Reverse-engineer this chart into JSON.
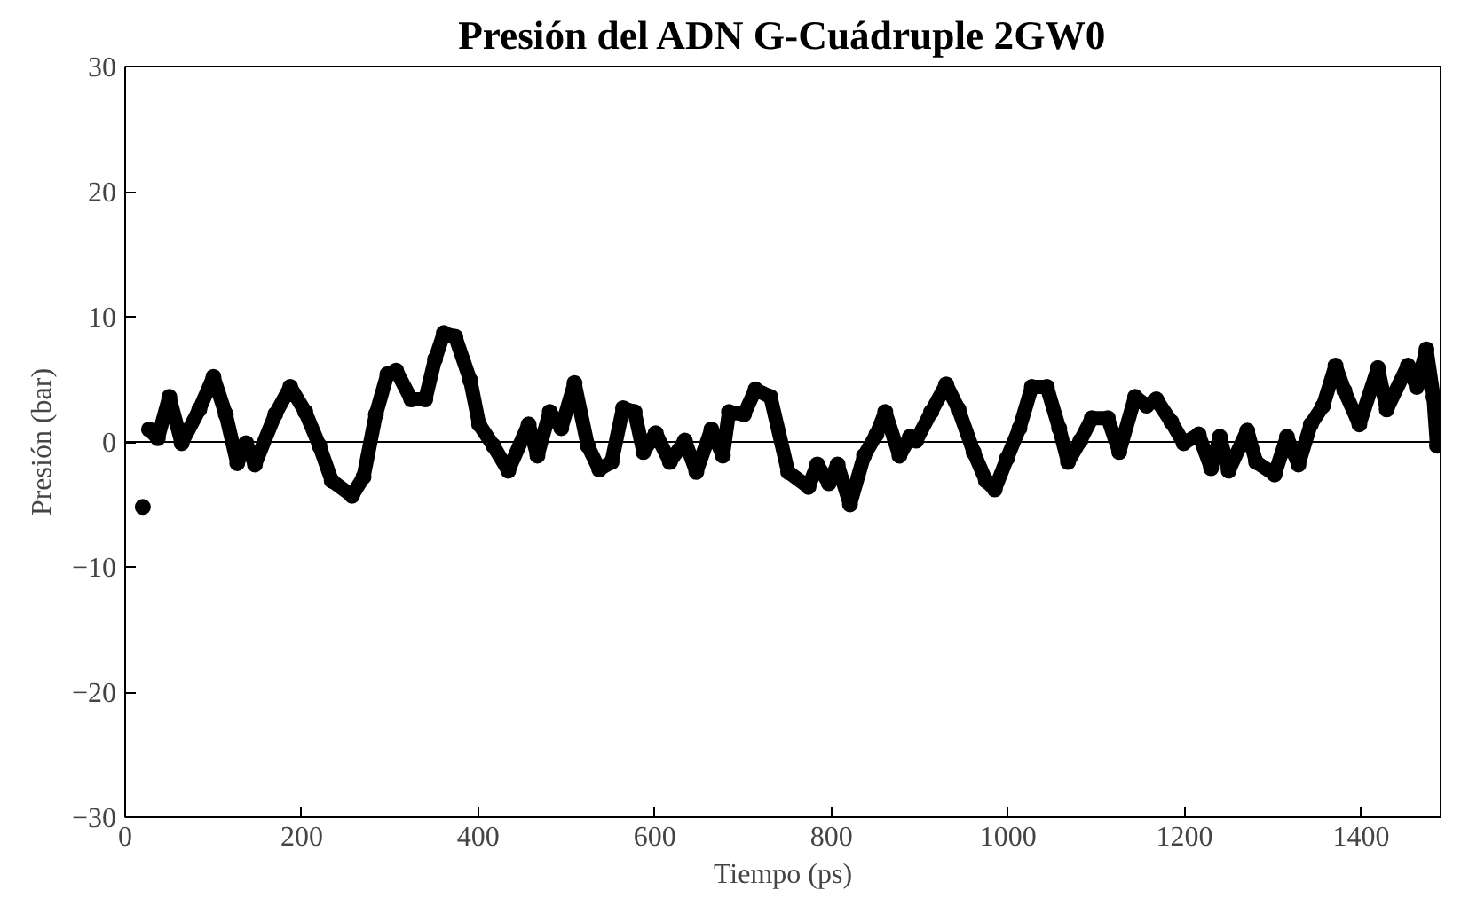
{
  "chart_data": {
    "type": "line",
    "title": "Presión del ADN G-Cuádruple 2GW0",
    "xlabel": "Tiempo (ps)",
    "ylabel": "Presión (bar)",
    "xlim": [
      0,
      1490
    ],
    "ylim": [
      -30,
      30
    ],
    "xticks": [
      0,
      200,
      400,
      600,
      800,
      1000,
      1200,
      1400
    ],
    "yticks": [
      -30,
      -20,
      -10,
      0,
      10,
      20,
      30
    ],
    "grid": false,
    "marker": "circle",
    "line_style": "solid",
    "ref_lines": [
      {
        "axis": "y",
        "value": 0,
        "color": "#000000"
      }
    ],
    "series": [
      {
        "color": "#000000",
        "x": [
          27,
          37,
          50,
          64,
          84,
          100,
          114,
          127,
          137,
          147,
          170,
          187,
          204,
          220,
          234,
          257,
          270,
          284,
          297,
          307,
          324,
          340,
          351,
          361,
          374,
          391,
          401,
          417,
          434,
          457,
          467,
          481,
          494,
          509,
          524,
          537,
          551,
          564,
          577,
          587,
          601,
          617,
          634,
          647,
          664,
          677,
          684,
          701,
          714,
          731,
          751,
          774,
          784,
          797,
          807,
          821,
          837,
          851,
          861,
          877,
          889,
          896,
          913,
          930,
          944,
          961,
          975,
          985,
          999,
          1013,
          1027,
          1044,
          1058,
          1068,
          1082,
          1095,
          1113,
          1126,
          1144,
          1157,
          1168,
          1185,
          1199,
          1216,
          1230,
          1240,
          1250,
          1271,
          1281,
          1302,
          1316,
          1329,
          1343,
          1357,
          1371,
          1381,
          1398,
          1419,
          1429,
          1453,
          1463,
          1474,
          1482,
          1486
        ],
        "values": [
          1.0,
          0.3,
          3.6,
          -0.1,
          2.6,
          5.2,
          2.2,
          -1.7,
          -0.1,
          -1.8,
          2.2,
          4.4,
          2.4,
          -0.3,
          -3.1,
          -4.3,
          -2.8,
          2.2,
          5.4,
          5.7,
          3.4,
          3.4,
          6.6,
          8.7,
          8.4,
          4.9,
          1.4,
          -0.3,
          -2.3,
          1.4,
          -1.1,
          2.4,
          1.1,
          4.7,
          -0.3,
          -2.2,
          -1.6,
          2.7,
          2.4,
          -0.8,
          0.7,
          -1.6,
          0.1,
          -2.4,
          1.0,
          -1.1,
          2.4,
          2.2,
          4.2,
          3.6,
          -2.4,
          -3.6,
          -1.8,
          -3.3,
          -1.8,
          -5.0,
          -1.1,
          0.6,
          2.4,
          -1.1,
          0.4,
          0.1,
          2.4,
          4.6,
          2.6,
          -0.8,
          -3.1,
          -3.8,
          -1.3,
          1.1,
          4.4,
          4.4,
          1.1,
          -1.6,
          0.1,
          1.9,
          1.9,
          -0.8,
          3.6,
          2.9,
          3.4,
          1.6,
          -0.1,
          0.6,
          -2.1,
          0.4,
          -2.3,
          0.9,
          -1.6,
          -2.6,
          0.4,
          -1.8,
          1.4,
          2.9,
          6.1,
          4.1,
          1.4,
          5.9,
          2.6,
          6.1,
          4.4,
          7.4,
          3.6,
          -0.3
        ]
      },
      {
        "type": "scatter",
        "color": "#000000",
        "x": [
          20
        ],
        "values": [
          -5.2
        ]
      }
    ]
  }
}
